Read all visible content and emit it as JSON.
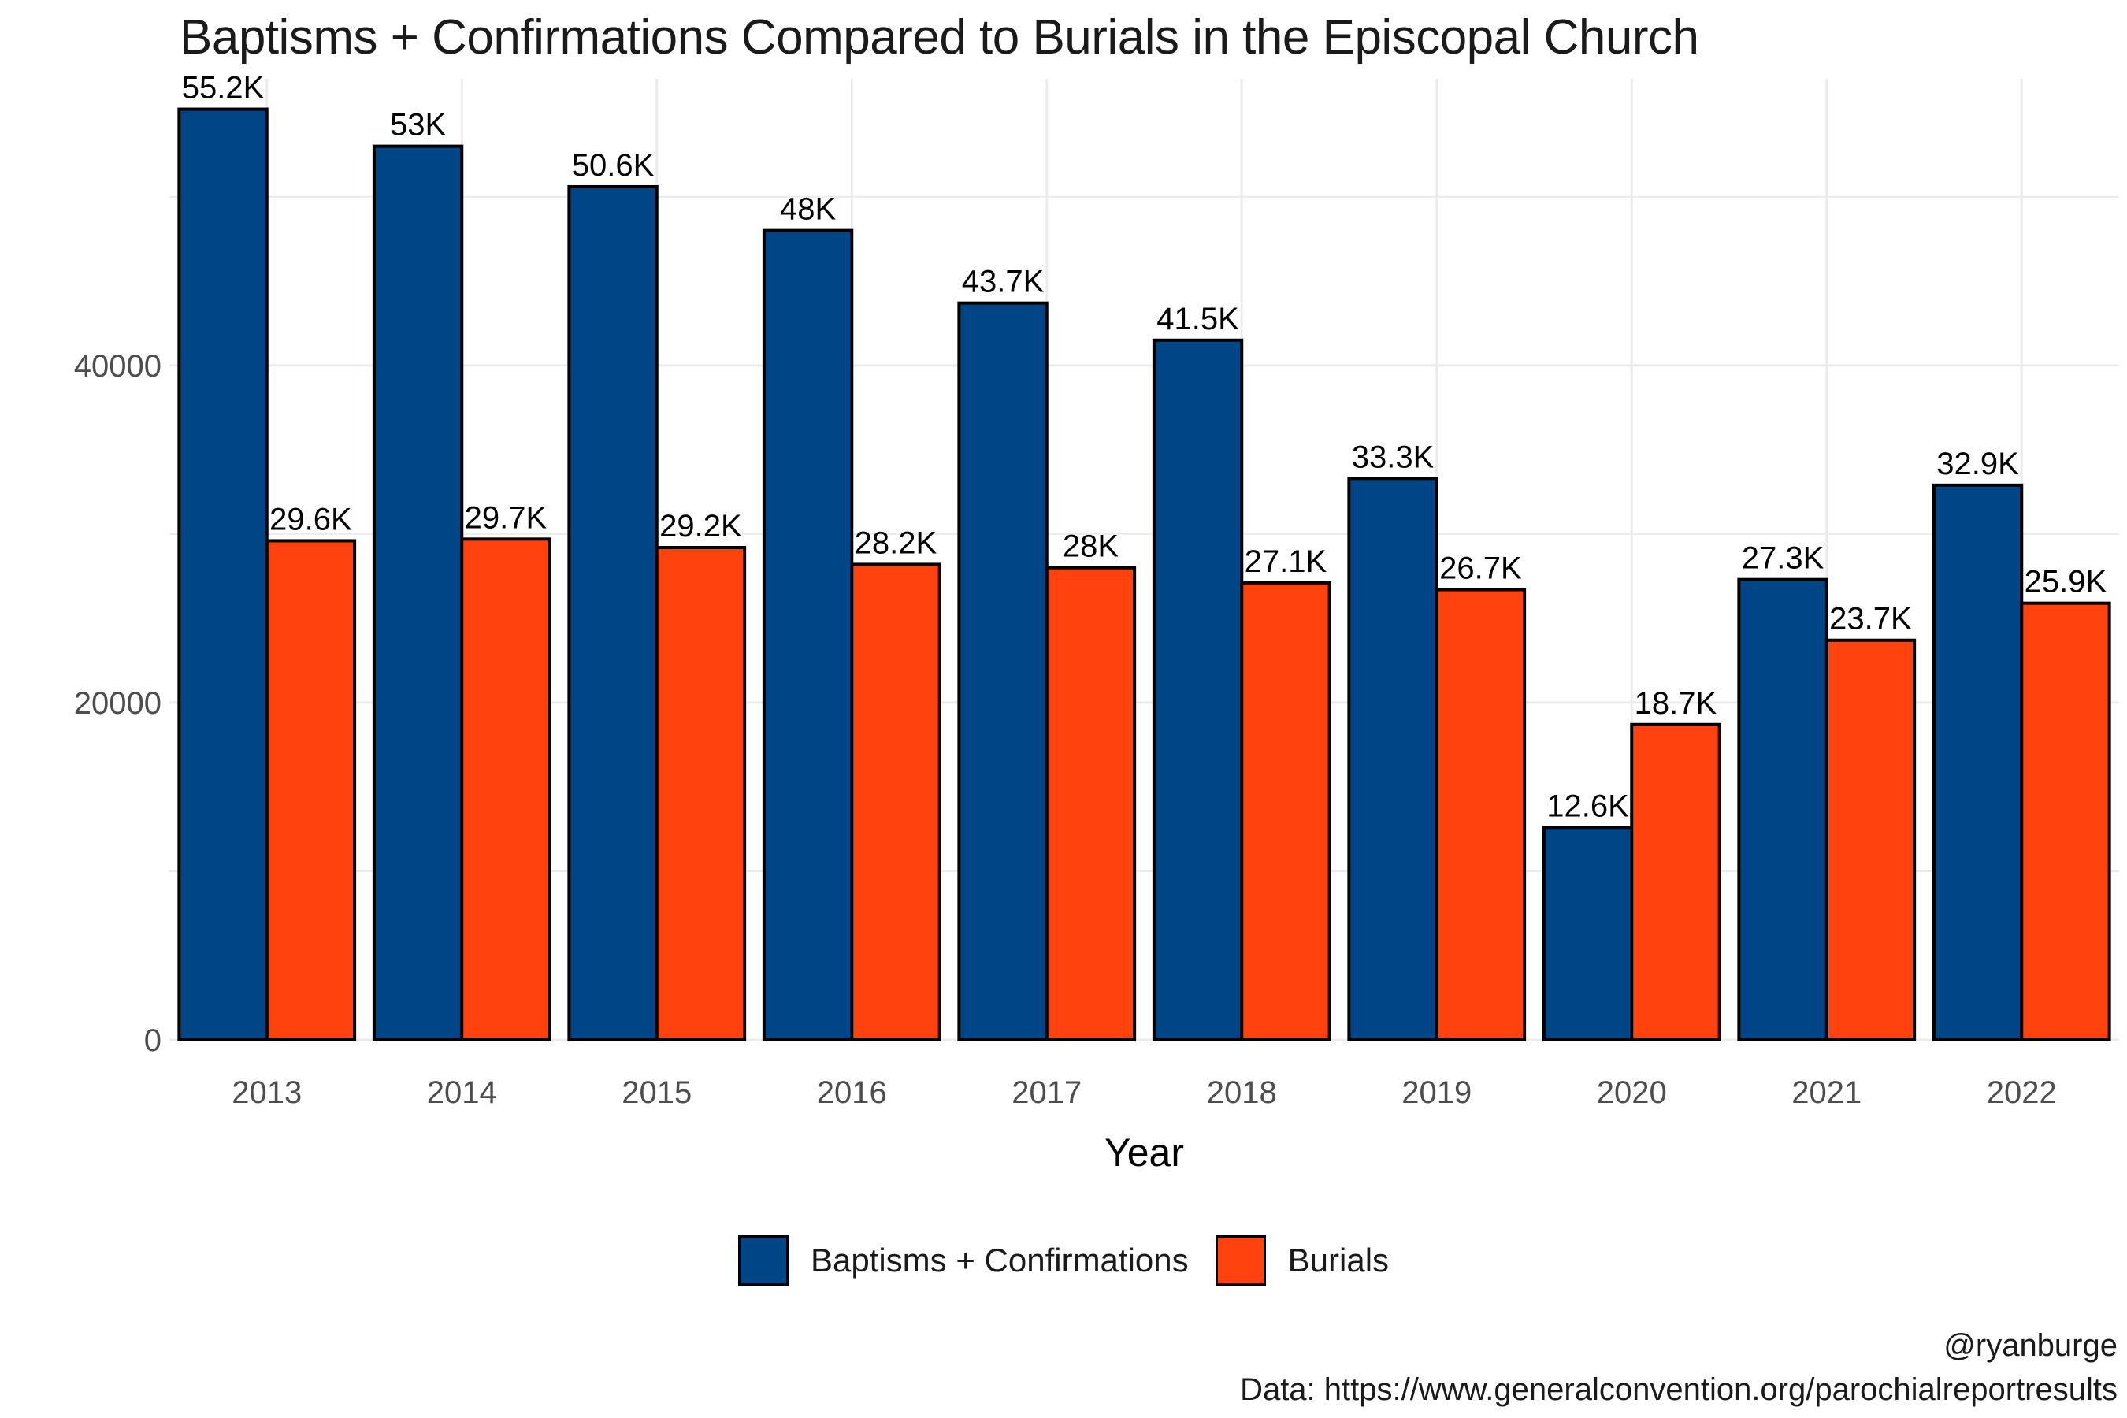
{
  "title": "Baptisms + Confirmations Compared to Burials in the Episcopal Church",
  "colors": {
    "baptisms": "#004586",
    "burials": "#FF420E",
    "grid": "#ebebeb"
  },
  "caption": {
    "handle": "@ryanburge",
    "source": "Data: https://www.generalconvention.org/parochialreportresults"
  },
  "legend": {
    "items": [
      {
        "label": "Baptisms + Confirmations",
        "color": "#004586"
      },
      {
        "label": "Burials",
        "color": "#FF420E"
      }
    ]
  },
  "chart_data": {
    "type": "bar",
    "title": "Baptisms + Confirmations Compared to Burials in the Episcopal Church",
    "xlabel": "Year",
    "ylabel": "",
    "ylim": [
      0,
      57000
    ],
    "yticks": [
      0,
      20000,
      40000
    ],
    "grid": true,
    "legend_position": "bottom",
    "categories": [
      "2013",
      "2014",
      "2015",
      "2016",
      "2017",
      "2018",
      "2019",
      "2020",
      "2021",
      "2022"
    ],
    "series": [
      {
        "name": "Baptisms + Confirmations",
        "color": "#004586",
        "values": [
          55200,
          53000,
          50600,
          48000,
          43700,
          41500,
          33300,
          12600,
          27300,
          32900
        ],
        "labels": [
          "55.2K",
          "53K",
          "50.6K",
          "48K",
          "43.7K",
          "41.5K",
          "33.3K",
          "12.6K",
          "27.3K",
          "32.9K"
        ]
      },
      {
        "name": "Burials",
        "color": "#FF420E",
        "values": [
          29600,
          29700,
          29200,
          28200,
          28000,
          27100,
          26700,
          18700,
          23700,
          25900
        ],
        "labels": [
          "29.6K",
          "29.7K",
          "29.2K",
          "28.2K",
          "28K",
          "27.1K",
          "26.7K",
          "18.7K",
          "23.7K",
          "25.9K"
        ]
      }
    ]
  }
}
